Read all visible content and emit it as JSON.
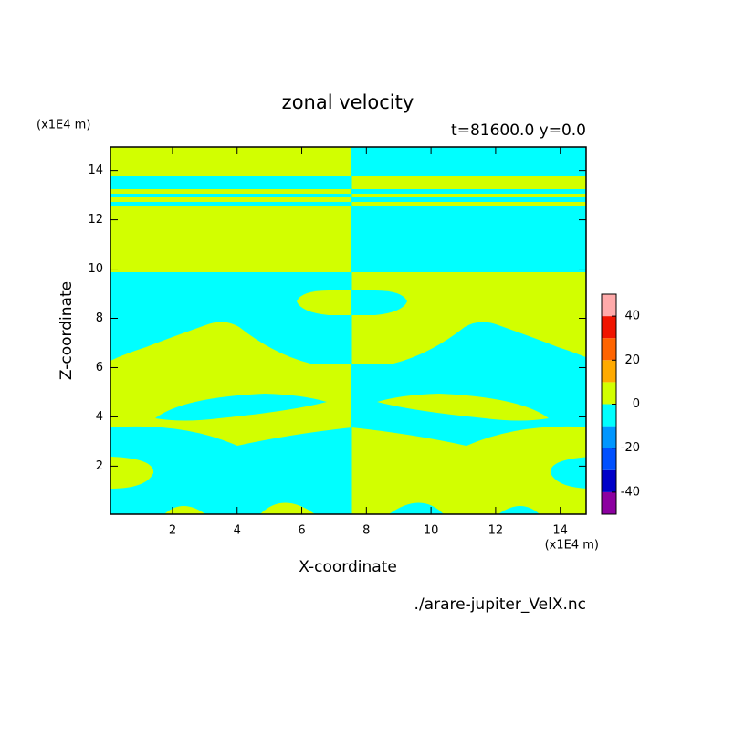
{
  "chart_data": {
    "type": "contour",
    "title": "zonal velocity",
    "subtitle": "t=81600.0 y=0.0",
    "x_label": "X-coordinate",
    "y_label": "Z-coordinate",
    "x_unit": "(x1E4 m)",
    "y_unit": "(x1E4 m)",
    "source": "./arare-jupiter_VelX.nc",
    "xlim": [
      0.08,
      14.8
    ],
    "ylim": [
      0.05,
      14.95
    ],
    "xticks": [
      2,
      4,
      6,
      8,
      10,
      12,
      14
    ],
    "yticks": [
      2,
      4,
      6,
      8,
      10,
      12,
      14
    ],
    "levels": [
      -50,
      -40,
      -30,
      -20,
      -10,
      0,
      10,
      20,
      30,
      40,
      50
    ],
    "colors": [
      "#8c00a0",
      "#0000c8",
      "#0050ff",
      "#0096ff",
      "#00ffff",
      "#d2ff00",
      "#ffaa00",
      "#ff6400",
      "#f01400",
      "#ffaaaa"
    ],
    "colorbar_ticks": [
      -40,
      -20,
      0,
      20,
      40
    ]
  }
}
